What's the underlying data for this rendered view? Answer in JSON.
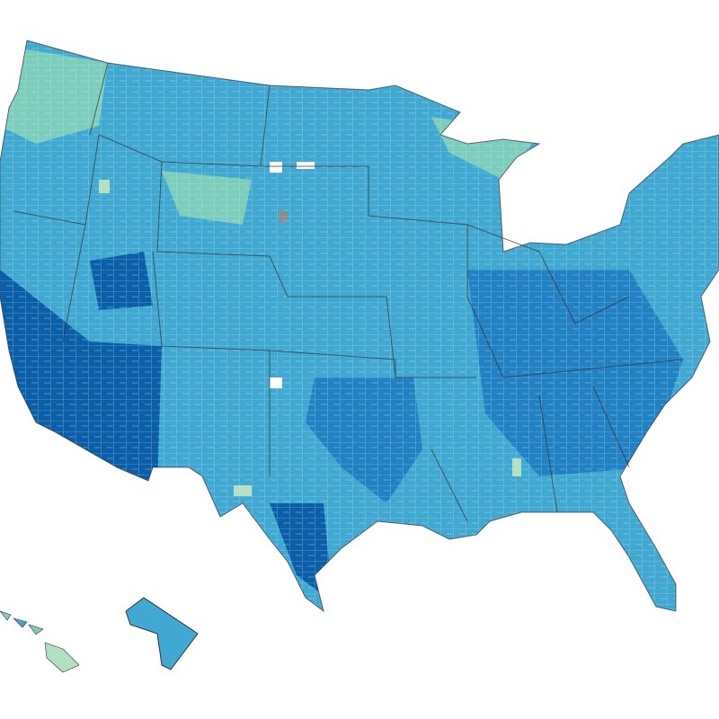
{
  "map": {
    "palette": [
      "#ffffff",
      "#b4e0c2",
      "#7ccdbb",
      "#41a9d1",
      "#2281c2",
      "#0b5ea8",
      "#8c8c8c"
    ]
  }
}
